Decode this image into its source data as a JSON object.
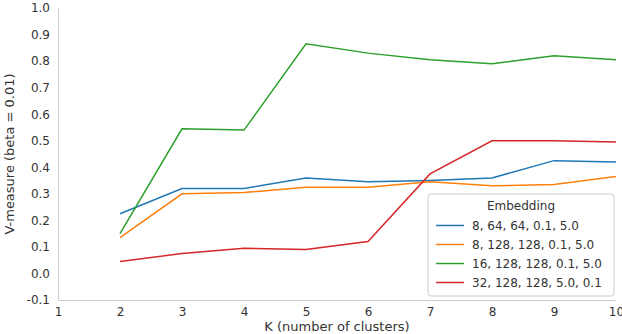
{
  "chart_data": {
    "type": "line",
    "x_label": "K (number of clusters)",
    "y_label": "V-measure (beta = 0.01)",
    "legend_title": "Embedding",
    "legend": "lower right",
    "grid": false,
    "x": [
      2,
      3,
      4,
      5,
      6,
      7,
      8,
      9,
      10
    ],
    "xlim": [
      1,
      10
    ],
    "xticks": [
      1,
      2,
      3,
      4,
      5,
      6,
      7,
      8,
      9,
      10
    ],
    "ylim": [
      -0.1,
      1.0
    ],
    "yticks": [
      -0.1,
      {
        "value": 0,
        "label": "0.0"
      },
      0.1,
      0.2,
      0.3,
      0.4,
      0.5,
      0.6,
      0.7,
      0.8,
      0.9,
      {
        "value": 1,
        "label": "1.0"
      }
    ],
    "series": [
      {
        "name": "8, 64, 64, 0.1, 5.0",
        "color": "#1f77b4",
        "values": [
          0.225,
          0.32,
          0.32,
          0.36,
          0.345,
          0.35,
          0.36,
          0.425,
          0.42
        ]
      },
      {
        "name": "8, 128, 128, 0.1, 5.0",
        "color": "#ff7f0e",
        "values": [
          0.135,
          0.3,
          0.305,
          0.325,
          0.325,
          0.345,
          0.33,
          0.335,
          0.365
        ]
      },
      {
        "name": "16, 128, 128, 0.1, 5.0",
        "color": "#2ca02c",
        "values": [
          0.15,
          0.545,
          0.54,
          0.865,
          0.83,
          0.805,
          0.79,
          0.82,
          0.805
        ]
      },
      {
        "name": "32, 128, 128, 5.0, 0.1",
        "color": "#d62728",
        "values": [
          0.045,
          0.075,
          0.095,
          0.09,
          0.12,
          0.375,
          0.5,
          0.5,
          0.495
        ]
      }
    ]
  }
}
